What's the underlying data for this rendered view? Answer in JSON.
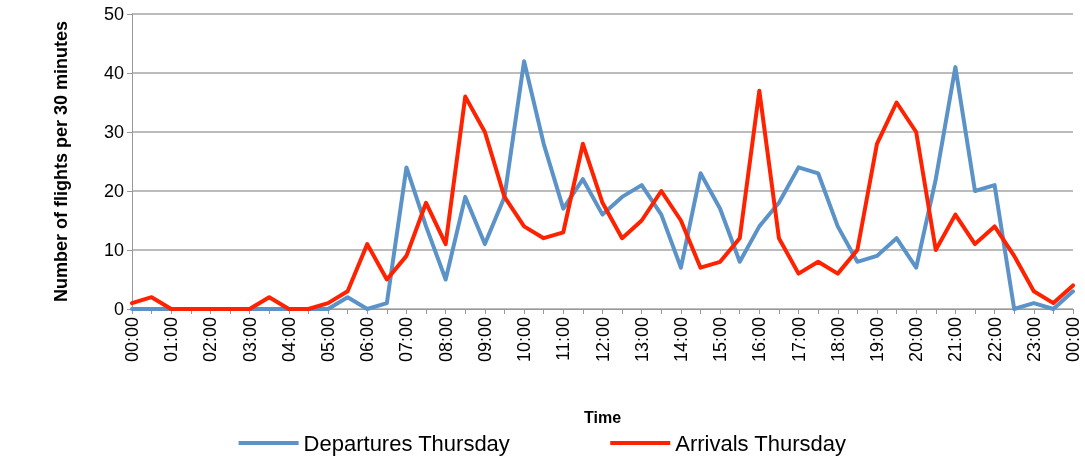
{
  "chart_data": {
    "type": "line",
    "xlabel": "Time",
    "ylabel": "Number of flights per 30 minutes",
    "categories": [
      "00:00",
      null,
      "01:00",
      null,
      "02:00",
      null,
      "03:00",
      null,
      "04:00",
      null,
      "05:00",
      null,
      "06:00",
      null,
      "07:00",
      null,
      "08:00",
      null,
      "09:00",
      null,
      "10:00",
      null,
      "11:00",
      null,
      "12:00",
      null,
      "13:00",
      null,
      "14:00",
      null,
      "15:00",
      null,
      "16:00",
      null,
      "17:00",
      null,
      "18:00",
      null,
      "19:00",
      null,
      "20:00",
      null,
      "21:00",
      null,
      "22:00",
      null,
      "23:00",
      null,
      "00:00"
    ],
    "series": [
      {
        "name": "Departures Thursday",
        "color": "#5b93c9",
        "values": [
          0,
          0,
          0,
          0,
          0,
          0,
          0,
          0,
          0,
          0,
          0,
          2,
          0,
          1,
          24,
          14,
          5,
          19,
          11,
          19,
          42,
          28,
          17,
          22,
          16,
          19,
          21,
          16,
          7,
          23,
          17,
          8,
          14,
          18,
          24,
          23,
          14,
          8,
          9,
          12,
          7,
          22,
          41,
          20,
          21,
          0,
          1,
          0,
          3
        ]
      },
      {
        "name": "Arrivals Thursday",
        "color": "#ff2200",
        "values": [
          1,
          2,
          0,
          0,
          0,
          0,
          0,
          2,
          0,
          0,
          1,
          3,
          11,
          5,
          9,
          18,
          11,
          36,
          30,
          19,
          14,
          12,
          13,
          28,
          18,
          12,
          15,
          20,
          15,
          7,
          8,
          12,
          37,
          12,
          6,
          8,
          6,
          10,
          28,
          35,
          30,
          10,
          16,
          11,
          14,
          9,
          3,
          1,
          4
        ]
      }
    ],
    "ylim": [
      0,
      50
    ],
    "yticks": [
      0,
      10,
      20,
      30,
      40,
      50
    ],
    "grid": "y",
    "legend": "bottom",
    "marker": "none",
    "line_style": "solid"
  }
}
